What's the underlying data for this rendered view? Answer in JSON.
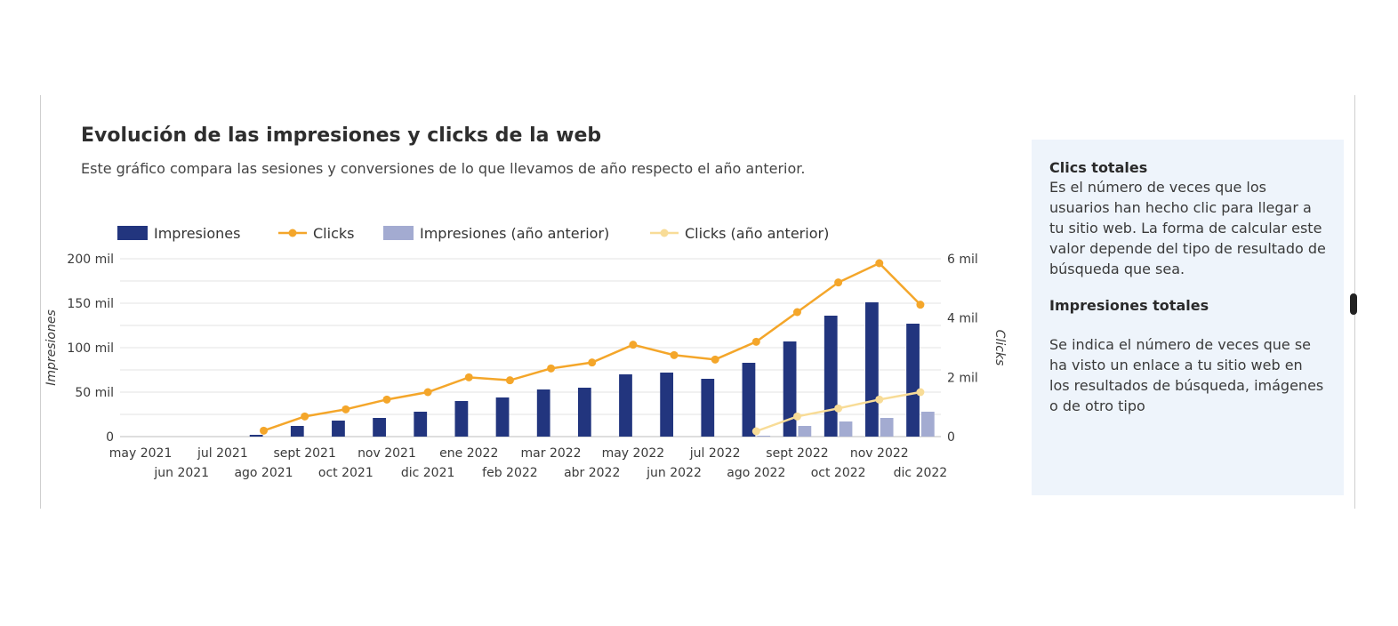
{
  "header": {
    "title": "Evolución de las impresiones y clicks de la web",
    "subtitle": "Este gráfico compara las sesiones y conversiones de lo que llevamos de año respecto el año anterior."
  },
  "info_panel": {
    "clicks_title": "Clics totales",
    "clicks_text": "Es el número de veces que los usuarios han hecho clic para llegar a tu sitio web. La forma de calcular este valor depende del tipo de resultado de búsqueda que sea.",
    "impressions_title": "Impresiones totales",
    "impressions_text": "Se indica el número de veces que se ha visto un enlace a tu sitio web en los resultados de búsqueda, imágenes o de otro tipo"
  },
  "colors": {
    "impressions": "#22357e",
    "clicks": "#f4a62a",
    "impressions_prev": "#a3abd1",
    "clicks_prev": "#f8dc97",
    "grid": "#e3e3e3",
    "panel_bg": "#eef4fb"
  },
  "chart_data": {
    "type": "bar",
    "categories": [
      "may 2021",
      "jun 2021",
      "jul 2021",
      "ago 2021",
      "sept 2021",
      "oct 2021",
      "nov 2021",
      "dic 2021",
      "ene 2022",
      "feb 2022",
      "mar 2022",
      "abr 2022",
      "may 2022",
      "jun 2022",
      "jul 2022",
      "ago 2022",
      "sept 2022",
      "oct 2022",
      "nov 2022",
      "dic 2022"
    ],
    "left_axis": {
      "label": "Impresiones",
      "min": 0,
      "max": 200000,
      "ticks": [
        0,
        50000,
        100000,
        150000,
        200000
      ],
      "tick_labels": [
        "0",
        "50 mil",
        "100 mil",
        "150 mil",
        "200 mil"
      ]
    },
    "right_axis": {
      "label": "Clicks",
      "min": 0,
      "max": 6000,
      "ticks": [
        0,
        2000,
        4000,
        6000
      ],
      "tick_labels": [
        "0",
        "2 mil",
        "4 mil",
        "6 mil"
      ]
    },
    "legend_position": "top-left",
    "grid": true,
    "series": [
      {
        "name": "Impresiones",
        "kind": "bar",
        "axis": "left",
        "color": "#22357e",
        "values": [
          0,
          0,
          0,
          2000,
          12000,
          18000,
          21000,
          28000,
          40000,
          44000,
          53000,
          55000,
          70000,
          72000,
          65000,
          83000,
          107000,
          136000,
          151000,
          127000
        ]
      },
      {
        "name": "Clicks",
        "kind": "line",
        "axis": "right",
        "color": "#f4a62a",
        "values": [
          null,
          null,
          null,
          200,
          680,
          920,
          1250,
          1500,
          2000,
          1900,
          2300,
          2500,
          3100,
          2750,
          2600,
          3200,
          4200,
          5200,
          5850,
          4450
        ]
      },
      {
        "name": "Impresiones (año anterior)",
        "kind": "bar",
        "axis": "left",
        "color": "#a3abd1",
        "values": [
          0,
          0,
          0,
          0,
          0,
          0,
          0,
          0,
          0,
          0,
          0,
          0,
          0,
          0,
          0,
          1000,
          12000,
          17000,
          21000,
          28000
        ]
      },
      {
        "name": "Clicks (año anterior)",
        "kind": "line",
        "axis": "right",
        "color": "#f8dc97",
        "values": [
          null,
          null,
          null,
          null,
          null,
          null,
          null,
          null,
          null,
          null,
          null,
          null,
          null,
          null,
          null,
          180,
          680,
          950,
          1250,
          1500
        ]
      }
    ]
  }
}
